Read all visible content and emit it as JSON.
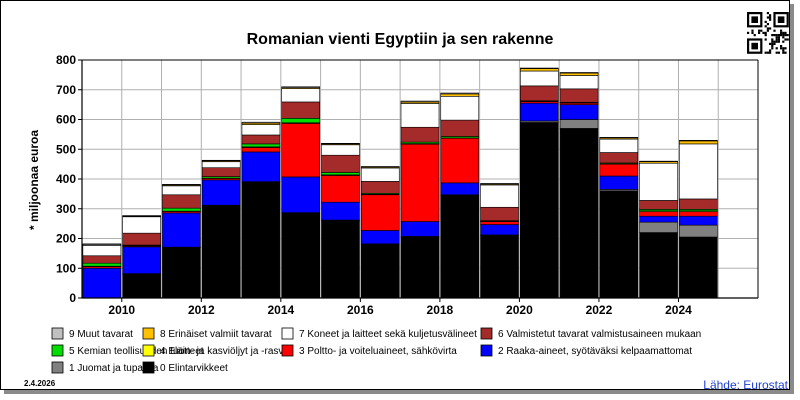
{
  "chart_data": {
    "type": "bar",
    "stacked": true,
    "title": "Romanian vienti Egyptiin ja sen rakenne",
    "ylabel": "* miljoonaa euroa",
    "ylim": [
      0,
      800
    ],
    "yticks": [
      0,
      100,
      200,
      300,
      400,
      500,
      600,
      700,
      800
    ],
    "grid": true,
    "categories": [
      "2009",
      "2010",
      "2011",
      "2012",
      "2013",
      "2014",
      "2015",
      "2016",
      "2017",
      "2018",
      "2019",
      "2020",
      "2021",
      "2022",
      "2023",
      "2024",
      "2025"
    ],
    "xtick_labels": [
      "2010",
      "2012",
      "2014",
      "2016",
      "2018",
      "2020",
      "2022",
      "2024"
    ],
    "series": [
      {
        "name": "0 Elintarvikkeet",
        "color": "#000000",
        "values": [
          0,
          80,
          170,
          310,
          390,
          285,
          260,
          180,
          205,
          345,
          210,
          590,
          570,
          360,
          220,
          205,
          0
        ]
      },
      {
        "name": "1 Juomat ja tupakka",
        "color": "#808080",
        "values": [
          0,
          2,
          1,
          2,
          1,
          2,
          2,
          2,
          2,
          2,
          2,
          5,
          30,
          5,
          35,
          40,
          0
        ]
      },
      {
        "name": "2 Raaka-aineet, syötäväksi kelpaamattomat",
        "color": "#0000ff",
        "values": [
          100,
          90,
          115,
          85,
          100,
          120,
          60,
          45,
          50,
          40,
          35,
          60,
          50,
          45,
          20,
          30,
          0
        ]
      },
      {
        "name": "3 Poltto- ja voiteluaineet, sähkövirta",
        "color": "#ff0000",
        "values": [
          5,
          3,
          5,
          5,
          15,
          180,
          90,
          120,
          260,
          150,
          10,
          5,
          5,
          40,
          15,
          15,
          0
        ]
      },
      {
        "name": "4 Eläin- ja kasviöljyt ja -rasvat",
        "color": "#ffff00",
        "values": [
          2,
          1,
          1,
          1,
          2,
          2,
          2,
          2,
          2,
          1,
          1,
          1,
          1,
          1,
          3,
          3,
          0
        ]
      },
      {
        "name": "5 Kemian teollisuuden tuotteet",
        "color": "#00dd00",
        "values": [
          10,
          2,
          10,
          5,
          10,
          15,
          8,
          3,
          5,
          5,
          2,
          2,
          2,
          3,
          5,
          5,
          0
        ]
      },
      {
        "name": "6 Valmistetut tavarat valmistusaineen mukaan",
        "color": "#a52a2a",
        "values": [
          25,
          40,
          45,
          30,
          30,
          55,
          58,
          40,
          50,
          55,
          45,
          50,
          45,
          35,
          30,
          35,
          0
        ]
      },
      {
        "name": "7 Koneet ja laitteet sekä kuljetusvälineet",
        "color": "#ffffff",
        "values": [
          35,
          55,
          30,
          20,
          35,
          45,
          35,
          45,
          80,
          80,
          75,
          50,
          45,
          45,
          125,
          185,
          0
        ]
      },
      {
        "name": "8 Erinäiset valmiit tavarat",
        "color": "#ffc000",
        "values": [
          2,
          2,
          3,
          3,
          5,
          3,
          3,
          3,
          5,
          8,
          3,
          8,
          8,
          4,
          5,
          10,
          0
        ]
      },
      {
        "name": "9 Muut tavarat",
        "color": "#c0c0c0",
        "values": [
          3,
          2,
          2,
          2,
          3,
          3,
          2,
          2,
          3,
          3,
          2,
          2,
          2,
          2,
          2,
          2,
          0
        ]
      }
    ],
    "legend_placement": "bottom",
    "legend_order": [
      9,
      8,
      7,
      6,
      5,
      4,
      3,
      2,
      1,
      0
    ]
  },
  "footer": {
    "date": "2.4.2026",
    "source": "Lähde: Eurostat"
  },
  "qr_code_icon": "qr-code-icon"
}
